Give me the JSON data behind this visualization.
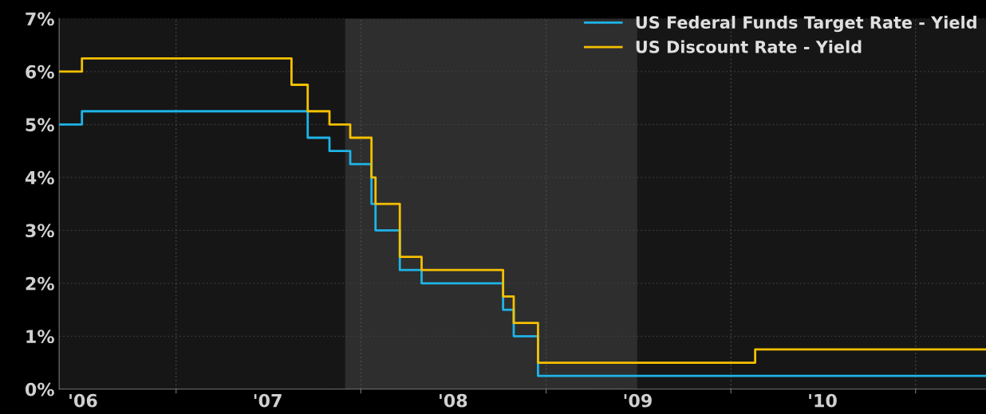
{
  "chart_data": {
    "type": "step",
    "series": [
      {
        "name": "US Federal Funds Target Rate - Yield",
        "color": "#1eb4e8",
        "x": [
          "2006-05-15",
          "2006-06-29",
          "2007-09-18",
          "2007-10-31",
          "2007-12-11",
          "2008-01-22",
          "2008-01-30",
          "2008-03-18",
          "2008-04-30",
          "2008-10-08",
          "2008-10-29",
          "2008-12-16",
          "2011-05-20"
        ],
        "values": [
          5.0,
          5.25,
          4.75,
          4.5,
          4.25,
          3.5,
          3.0,
          2.25,
          2.0,
          1.5,
          1.0,
          0.25,
          0.25
        ]
      },
      {
        "name": "US Discount Rate - Yield",
        "color": "#f5c000",
        "x": [
          "2006-05-15",
          "2006-06-29",
          "2007-08-17",
          "2007-09-18",
          "2007-10-31",
          "2007-12-11",
          "2008-01-22",
          "2008-01-30",
          "2008-03-18",
          "2008-04-30",
          "2008-10-08",
          "2008-10-29",
          "2008-12-16",
          "2010-02-18",
          "2011-05-20"
        ],
        "values": [
          6.0,
          6.25,
          5.75,
          5.25,
          5.0,
          4.75,
          4.0,
          3.5,
          2.5,
          2.25,
          1.75,
          1.25,
          0.5,
          0.75,
          0.75
        ]
      }
    ],
    "xlim": [
      "2006-05-15",
      "2011-05-20"
    ],
    "xticks": [
      {
        "value": "2007-01-01",
        "label": null
      },
      {
        "value": "2008-01-01",
        "label": null
      },
      {
        "value": "2009-01-01",
        "label": null
      },
      {
        "value": "2010-01-01",
        "label": null
      },
      {
        "value": "2011-01-01",
        "label": null
      },
      {
        "value": "2006-07-01",
        "label": "'06"
      },
      {
        "value": "2007-07-01",
        "label": "'07"
      },
      {
        "value": "2008-07-01",
        "label": "'08"
      },
      {
        "value": "2009-07-01",
        "label": "'09"
      },
      {
        "value": "2010-07-01",
        "label": "'10"
      }
    ],
    "ylim": [
      0,
      7
    ],
    "yticks": [
      {
        "value": 0,
        "label": "0%"
      },
      {
        "value": 1,
        "label": "1%"
      },
      {
        "value": 2,
        "label": "2%"
      },
      {
        "value": 3,
        "label": "3%"
      },
      {
        "value": 4,
        "label": "4%"
      },
      {
        "value": 5,
        "label": "5%"
      },
      {
        "value": 6,
        "label": "6%"
      },
      {
        "value": 7,
        "label": "7%"
      }
    ],
    "bands": [
      {
        "axis": "x",
        "from": "2007-12-01",
        "to": "2009-06-30",
        "color": "#2e2e2e"
      }
    ],
    "grid": true,
    "legend": "top right",
    "line_style": "solid"
  }
}
